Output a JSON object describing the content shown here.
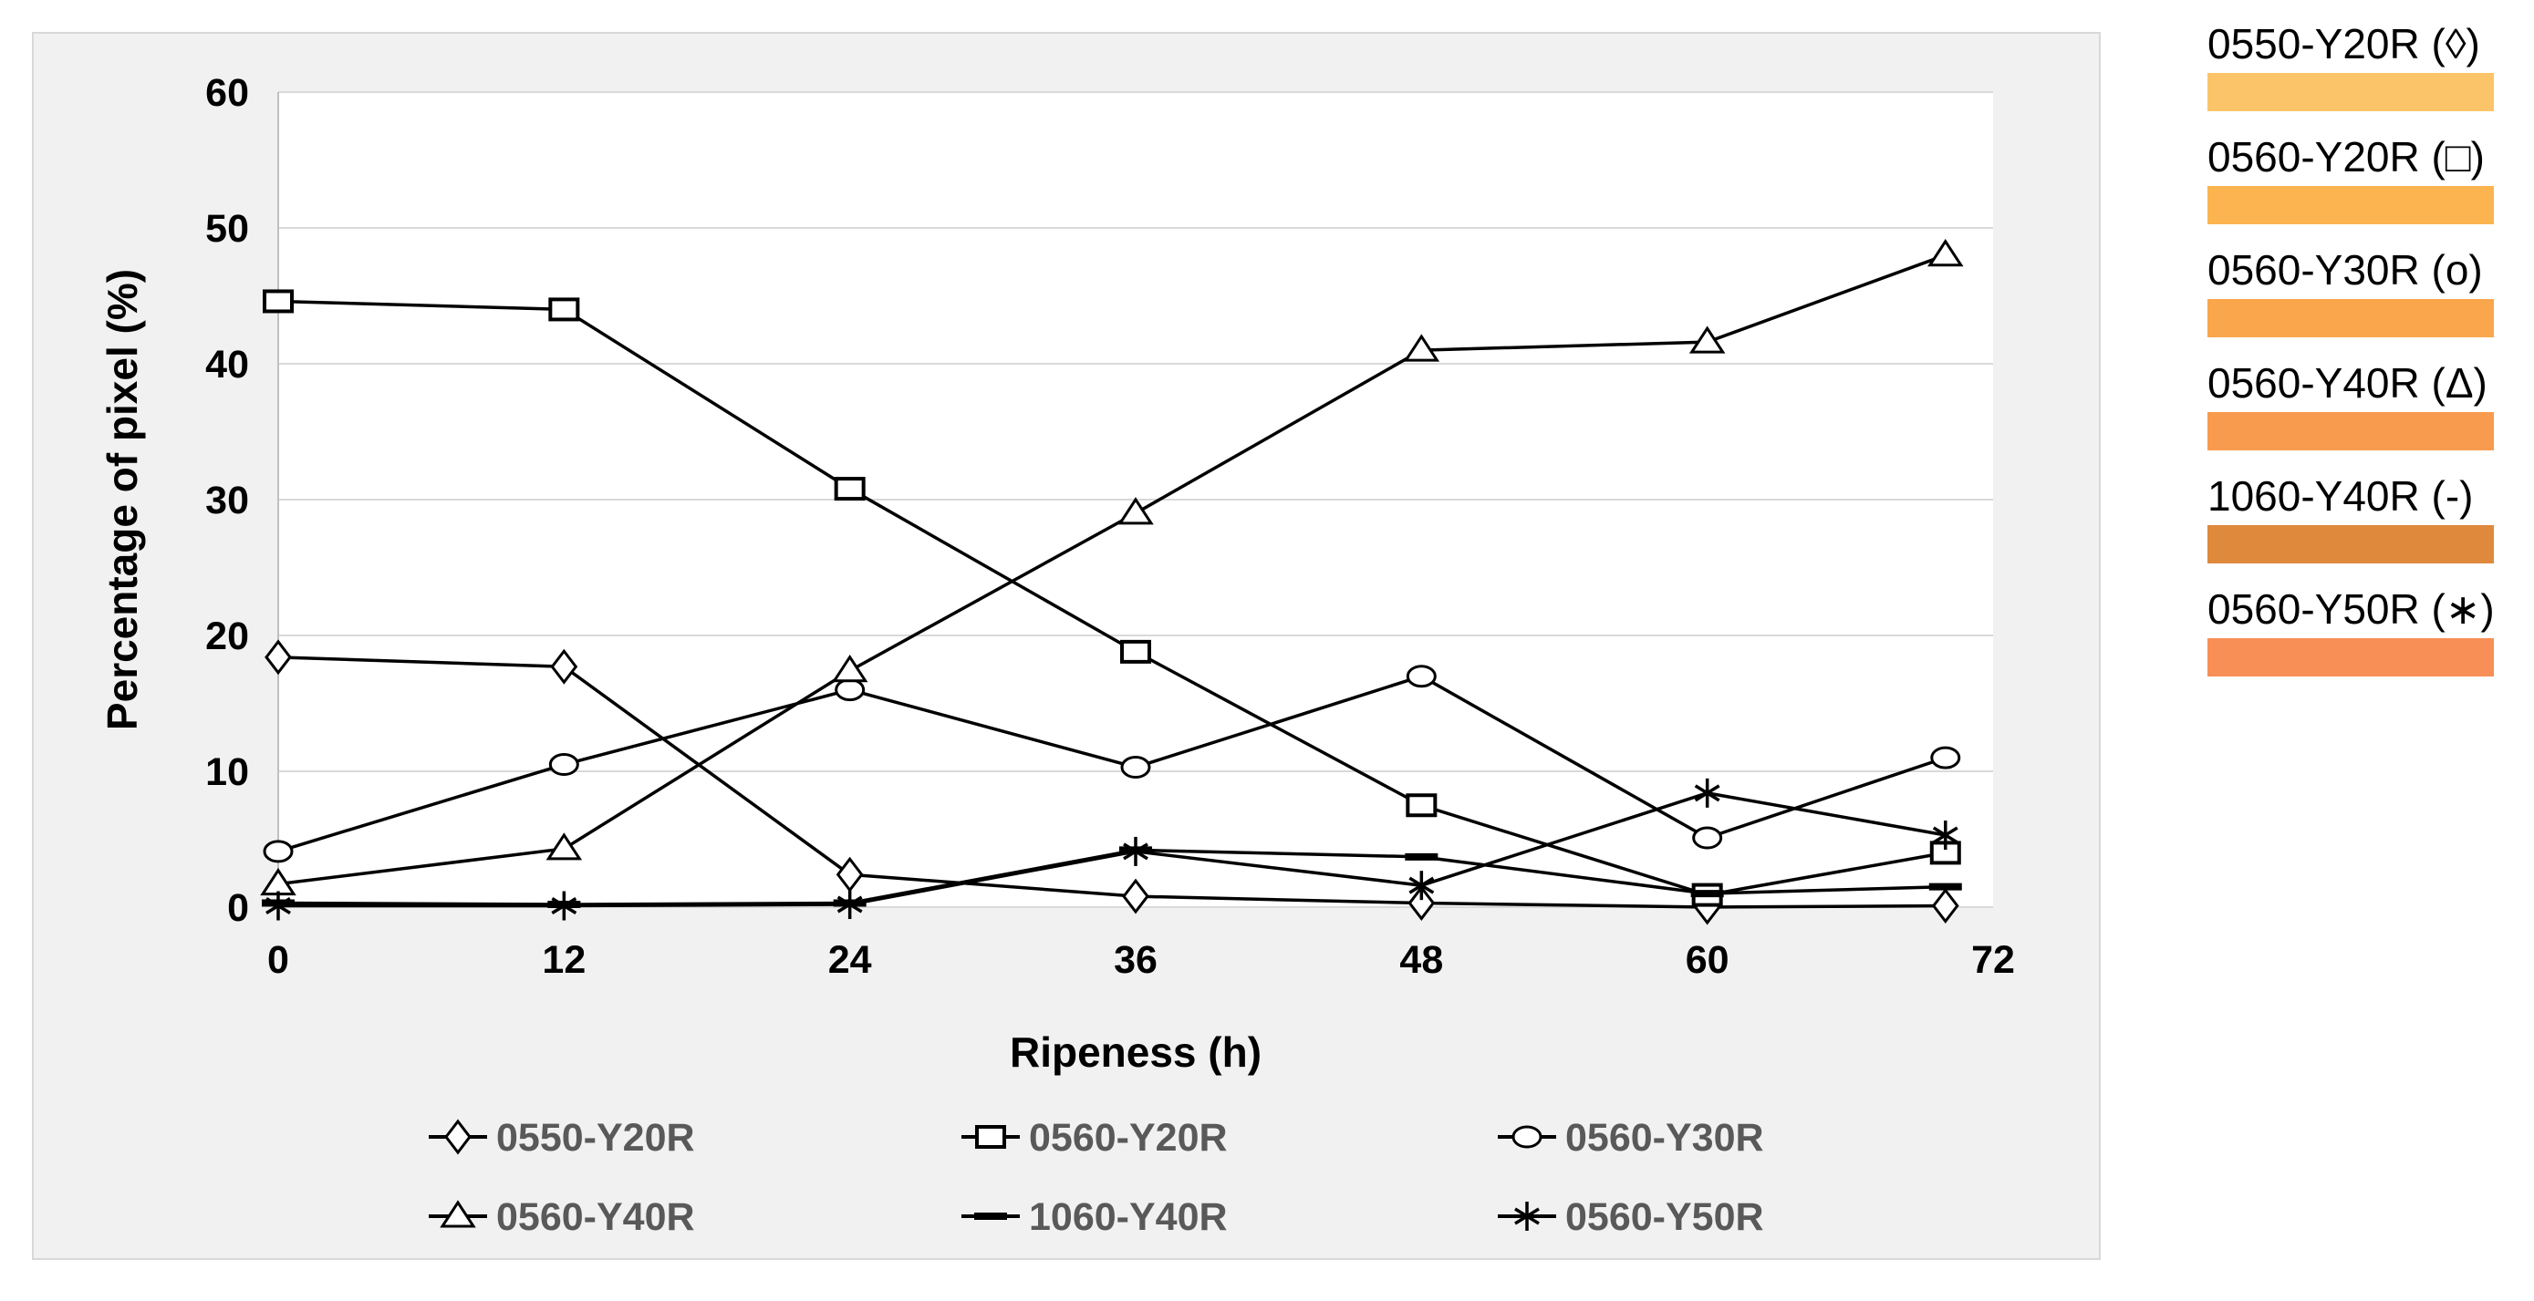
{
  "chart_data": {
    "type": "line",
    "title": "",
    "xlabel": "Ripeness (h)",
    "ylabel": "Percentage of pixel (%)",
    "xlim": [
      0,
      72
    ],
    "ylim": [
      0,
      60
    ],
    "x_ticks": [
      0,
      12,
      24,
      36,
      48,
      60,
      72
    ],
    "y_ticks": [
      0,
      10,
      20,
      30,
      40,
      50,
      60
    ],
    "grid": true,
    "legend_position": "bottom",
    "x": [
      0,
      12,
      24,
      36,
      48,
      60,
      70
    ],
    "series": [
      {
        "name": "0550-Y20R",
        "marker": "diamond",
        "values": [
          18.4,
          17.7,
          2.4,
          0.8,
          0.3,
          0.0,
          0.1
        ]
      },
      {
        "name": "0560-Y20R",
        "marker": "square",
        "values": [
          44.6,
          44.0,
          30.8,
          18.8,
          7.5,
          0.9,
          4.0
        ]
      },
      {
        "name": "0560-Y30R",
        "marker": "circle",
        "values": [
          4.1,
          10.5,
          16.0,
          10.3,
          17.0,
          5.1,
          11.0
        ]
      },
      {
        "name": "0560-Y40R",
        "marker": "triangle",
        "values": [
          1.7,
          4.3,
          17.4,
          29.0,
          41.0,
          41.6,
          48.0
        ]
      },
      {
        "name": "1060-Y40R",
        "marker": "dash",
        "values": [
          0.3,
          0.2,
          0.3,
          4.2,
          3.7,
          1.0,
          1.5
        ]
      },
      {
        "name": "0560-Y50R",
        "marker": "asterisk",
        "values": [
          0.1,
          0.1,
          0.2,
          4.1,
          1.6,
          8.4,
          5.3
        ]
      }
    ],
    "line_color": "#000000",
    "grid_color": "#d9d9d9",
    "axis_color": "#bfbfbf",
    "legend_text_color": "#595959"
  },
  "side_panel": {
    "items": [
      {
        "label": "0550-Y20R (◊)",
        "color": "#fcc469"
      },
      {
        "label": "0560-Y20R (□)",
        "color": "#fbb44f"
      },
      {
        "label": "0560-Y30R (o)",
        "color": "#f9a64c"
      },
      {
        "label": "0560-Y40R (Δ)",
        "color": "#f89b4e"
      },
      {
        "label": "1060-Y40R (-)",
        "color": "#de893c"
      },
      {
        "label": "0560-Y50R (∗)",
        "color": "#f78f56"
      }
    ]
  }
}
